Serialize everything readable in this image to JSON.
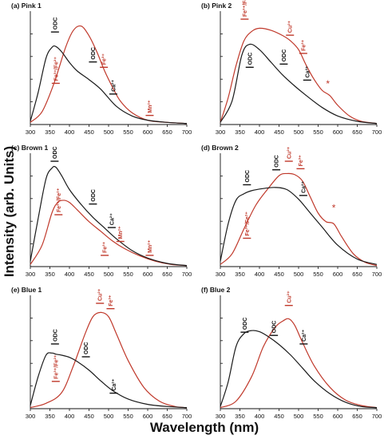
{
  "figure": {
    "ylabel": "Intensity (arb. Units)",
    "xlabel": "Wavelength (nm)"
  },
  "colors": {
    "black_series": "#1a1a1a",
    "red_series": "#c0392b",
    "label_red": "#c0392b"
  },
  "chart_data": [
    {
      "id": "a",
      "title": "(a) Pink 1",
      "type": "line",
      "xlim": [
        300,
        700
      ],
      "xticks": [
        300,
        350,
        400,
        450,
        500,
        550,
        600,
        650,
        700
      ],
      "series": [
        {
          "color": "black",
          "x": [
            300,
            320,
            340,
            355,
            365,
            380,
            400,
            420,
            450,
            480,
            520,
            560,
            600,
            650,
            700
          ],
          "y": [
            0.03,
            0.3,
            0.62,
            0.72,
            0.73,
            0.68,
            0.58,
            0.5,
            0.42,
            0.33,
            0.17,
            0.08,
            0.04,
            0.02,
            0.01
          ]
        },
        {
          "color": "red",
          "x": [
            300,
            330,
            360,
            390,
            410,
            430,
            450,
            470,
            490,
            510,
            530,
            560,
            600,
            650,
            700
          ],
          "y": [
            0.02,
            0.12,
            0.38,
            0.72,
            0.88,
            0.92,
            0.83,
            0.68,
            0.5,
            0.35,
            0.22,
            0.11,
            0.04,
            0.02,
            0.01
          ]
        }
      ],
      "annotations": [
        {
          "text": "ODC",
          "x": 363,
          "y": 0.88,
          "color": "black"
        },
        {
          "text": "ODC",
          "x": 460,
          "y": 0.6,
          "color": "black"
        },
        {
          "text": "Fe³⁺/Fe²⁺",
          "x": 365,
          "y": 0.4,
          "color": "red"
        },
        {
          "text": "Fe³⁺",
          "x": 488,
          "y": 0.55,
          "color": "red"
        },
        {
          "text": "Ca²⁺",
          "x": 512,
          "y": 0.3,
          "color": "black"
        },
        {
          "text": "Mn²⁺",
          "x": 605,
          "y": 0.1,
          "color": "red"
        }
      ]
    },
    {
      "id": "b",
      "title": "(b) Pink 2",
      "type": "line",
      "xlim": [
        300,
        700
      ],
      "xticks": [
        300,
        350,
        400,
        450,
        500,
        550,
        600,
        650,
        700
      ],
      "series": [
        {
          "color": "black",
          "x": [
            300,
            330,
            355,
            375,
            400,
            430,
            460,
            490,
            520,
            560,
            600,
            650,
            700
          ],
          "y": [
            0.02,
            0.22,
            0.65,
            0.75,
            0.7,
            0.58,
            0.46,
            0.36,
            0.27,
            0.16,
            0.08,
            0.03,
            0.01
          ]
        },
        {
          "color": "red",
          "x": [
            300,
            320,
            340,
            360,
            380,
            400,
            430,
            460,
            480,
            500,
            520,
            540,
            560,
            580,
            600,
            630,
            660,
            700
          ],
          "y": [
            0.02,
            0.25,
            0.55,
            0.78,
            0.87,
            0.9,
            0.88,
            0.83,
            0.78,
            0.7,
            0.55,
            0.42,
            0.32,
            0.27,
            0.18,
            0.08,
            0.03,
            0.01
          ]
        }
      ],
      "annotations": [
        {
          "text": "Fe³⁺/Fe²⁺",
          "x": 362,
          "y": 1.0,
          "color": "red"
        },
        {
          "text": "ODC",
          "x": 375,
          "y": 0.55,
          "color": "black"
        },
        {
          "text": "ODC",
          "x": 462,
          "y": 0.58,
          "color": "black"
        },
        {
          "text": "Cu²⁺",
          "x": 478,
          "y": 0.85,
          "color": "red"
        },
        {
          "text": "Fe³⁺",
          "x": 512,
          "y": 0.68,
          "color": "red"
        },
        {
          "text": "Ca²⁺",
          "x": 522,
          "y": 0.43,
          "color": "black"
        },
        {
          "text": "*",
          "x": 575,
          "y": 0.35,
          "color": "red"
        }
      ]
    },
    {
      "id": "c",
      "title": "(c) Brown 1",
      "type": "line",
      "xlim": [
        300,
        700
      ],
      "xticks": [
        300,
        350,
        400,
        450,
        500,
        550,
        600,
        650,
        700
      ],
      "series": [
        {
          "color": "black",
          "x": [
            300,
            320,
            340,
            355,
            365,
            380,
            400,
            430,
            460,
            490,
            520,
            560,
            600,
            650,
            700
          ],
          "y": [
            0.05,
            0.45,
            0.82,
            0.92,
            0.93,
            0.85,
            0.72,
            0.58,
            0.46,
            0.36,
            0.26,
            0.15,
            0.08,
            0.03,
            0.01
          ]
        },
        {
          "color": "red",
          "x": [
            300,
            330,
            355,
            370,
            385,
            400,
            420,
            450,
            480,
            510,
            540,
            580,
            620,
            660,
            700
          ],
          "y": [
            0.02,
            0.2,
            0.5,
            0.6,
            0.62,
            0.6,
            0.53,
            0.42,
            0.33,
            0.24,
            0.17,
            0.1,
            0.05,
            0.02,
            0.01
          ]
        }
      ],
      "annotations": [
        {
          "text": "ODC",
          "x": 362,
          "y": 1.0,
          "color": "black"
        },
        {
          "text": "ODC",
          "x": 460,
          "y": 0.6,
          "color": "black"
        },
        {
          "text": "Fe³⁺/Fe²⁺",
          "x": 372,
          "y": 0.5,
          "color": "red"
        },
        {
          "text": "Ca²⁺",
          "x": 508,
          "y": 0.38,
          "color": "black"
        },
        {
          "text": "Fe³⁺",
          "x": 490,
          "y": 0.12,
          "color": "red"
        },
        {
          "text": "Mn²⁺",
          "x": 530,
          "y": 0.25,
          "color": "red"
        },
        {
          "text": "Mn²⁺",
          "x": 605,
          "y": 0.12,
          "color": "red"
        }
      ]
    },
    {
      "id": "d",
      "title": "(d) Brown 2",
      "type": "line",
      "xlim": [
        300,
        700
      ],
      "xticks": [
        300,
        350,
        400,
        450,
        500,
        550,
        600,
        650,
        700
      ],
      "series": [
        {
          "color": "black",
          "x": [
            300,
            320,
            340,
            360,
            380,
            410,
            440,
            470,
            500,
            530,
            560,
            600,
            650,
            700
          ],
          "y": [
            0.05,
            0.4,
            0.62,
            0.68,
            0.71,
            0.73,
            0.74,
            0.72,
            0.63,
            0.5,
            0.37,
            0.2,
            0.07,
            0.02
          ]
        },
        {
          "color": "red",
          "x": [
            300,
            330,
            360,
            390,
            420,
            450,
            470,
            490,
            510,
            530,
            550,
            570,
            590,
            610,
            640,
            670,
            700
          ],
          "y": [
            0.02,
            0.12,
            0.35,
            0.57,
            0.72,
            0.85,
            0.87,
            0.86,
            0.8,
            0.65,
            0.5,
            0.42,
            0.4,
            0.28,
            0.12,
            0.04,
            0.01
          ]
        }
      ],
      "annotations": [
        {
          "text": "ODC",
          "x": 368,
          "y": 0.78,
          "color": "black"
        },
        {
          "text": "ODC",
          "x": 443,
          "y": 0.92,
          "color": "black"
        },
        {
          "text": "Cu²⁺",
          "x": 475,
          "y": 1.0,
          "color": "red"
        },
        {
          "text": "Fe³⁺",
          "x": 505,
          "y": 0.93,
          "color": "red"
        },
        {
          "text": "Ca²⁺",
          "x": 512,
          "y": 0.68,
          "color": "black"
        },
        {
          "text": "Fe³⁺/Fe²⁺",
          "x": 368,
          "y": 0.28,
          "color": "red"
        },
        {
          "text": "*",
          "x": 590,
          "y": 0.52,
          "color": "red"
        }
      ]
    },
    {
      "id": "e",
      "title": "(e) Blue 1",
      "type": "line",
      "xlim": [
        300,
        700
      ],
      "xticks": [
        300,
        350,
        400,
        450,
        500,
        550,
        600,
        650,
        700
      ],
      "series": [
        {
          "color": "black",
          "x": [
            300,
            320,
            340,
            355,
            365,
            380,
            400,
            420,
            450,
            480,
            510,
            550,
            600,
            650,
            700
          ],
          "y": [
            0.03,
            0.3,
            0.5,
            0.52,
            0.51,
            0.5,
            0.48,
            0.44,
            0.36,
            0.26,
            0.17,
            0.09,
            0.04,
            0.02,
            0.01
          ]
        },
        {
          "color": "red",
          "x": [
            300,
            340,
            380,
            410,
            440,
            460,
            480,
            500,
            520,
            550,
            590,
            630,
            670,
            700
          ],
          "y": [
            0.01,
            0.05,
            0.15,
            0.4,
            0.7,
            0.86,
            0.9,
            0.86,
            0.7,
            0.45,
            0.2,
            0.07,
            0.02,
            0.01
          ]
        }
      ],
      "annotations": [
        {
          "text": "ODC",
          "x": 363,
          "y": 0.62,
          "color": "black"
        },
        {
          "text": "ODC",
          "x": 442,
          "y": 0.5,
          "color": "black"
        },
        {
          "text": "Cu²⁺",
          "x": 478,
          "y": 1.0,
          "color": "red"
        },
        {
          "text": "Fe³⁺",
          "x": 505,
          "y": 0.95,
          "color": "red"
        },
        {
          "text": "Ca²⁺",
          "x": 513,
          "y": 0.16,
          "color": "black"
        },
        {
          "text": "Fe³⁺/Fe²⁺",
          "x": 365,
          "y": 0.27,
          "color": "red"
        }
      ]
    },
    {
      "id": "f",
      "title": "(f) Blue 2",
      "type": "line",
      "xlim": [
        300,
        700
      ],
      "xticks": [
        300,
        350,
        400,
        450,
        500,
        550,
        600,
        650,
        700
      ],
      "series": [
        {
          "color": "black",
          "x": [
            300,
            320,
            340,
            360,
            380,
            400,
            420,
            450,
            480,
            510,
            540,
            580,
            620,
            660,
            700
          ],
          "y": [
            0.02,
            0.25,
            0.58,
            0.7,
            0.73,
            0.72,
            0.68,
            0.6,
            0.5,
            0.38,
            0.26,
            0.14,
            0.06,
            0.02,
            0.01
          ]
        },
        {
          "color": "red",
          "x": [
            300,
            340,
            380,
            410,
            440,
            460,
            475,
            490,
            510,
            540,
            580,
            620,
            660,
            700
          ],
          "y": [
            0.01,
            0.07,
            0.3,
            0.58,
            0.76,
            0.82,
            0.84,
            0.78,
            0.62,
            0.4,
            0.2,
            0.08,
            0.03,
            0.01
          ]
        }
      ],
      "annotations": [
        {
          "text": "ODC",
          "x": 362,
          "y": 0.73,
          "color": "black"
        },
        {
          "text": "ODC",
          "x": 437,
          "y": 0.7,
          "color": "black"
        },
        {
          "text": "Cu²⁺",
          "x": 475,
          "y": 0.98,
          "color": "red"
        },
        {
          "text": "Ca²⁺",
          "x": 513,
          "y": 0.62,
          "color": "black"
        }
      ]
    }
  ]
}
